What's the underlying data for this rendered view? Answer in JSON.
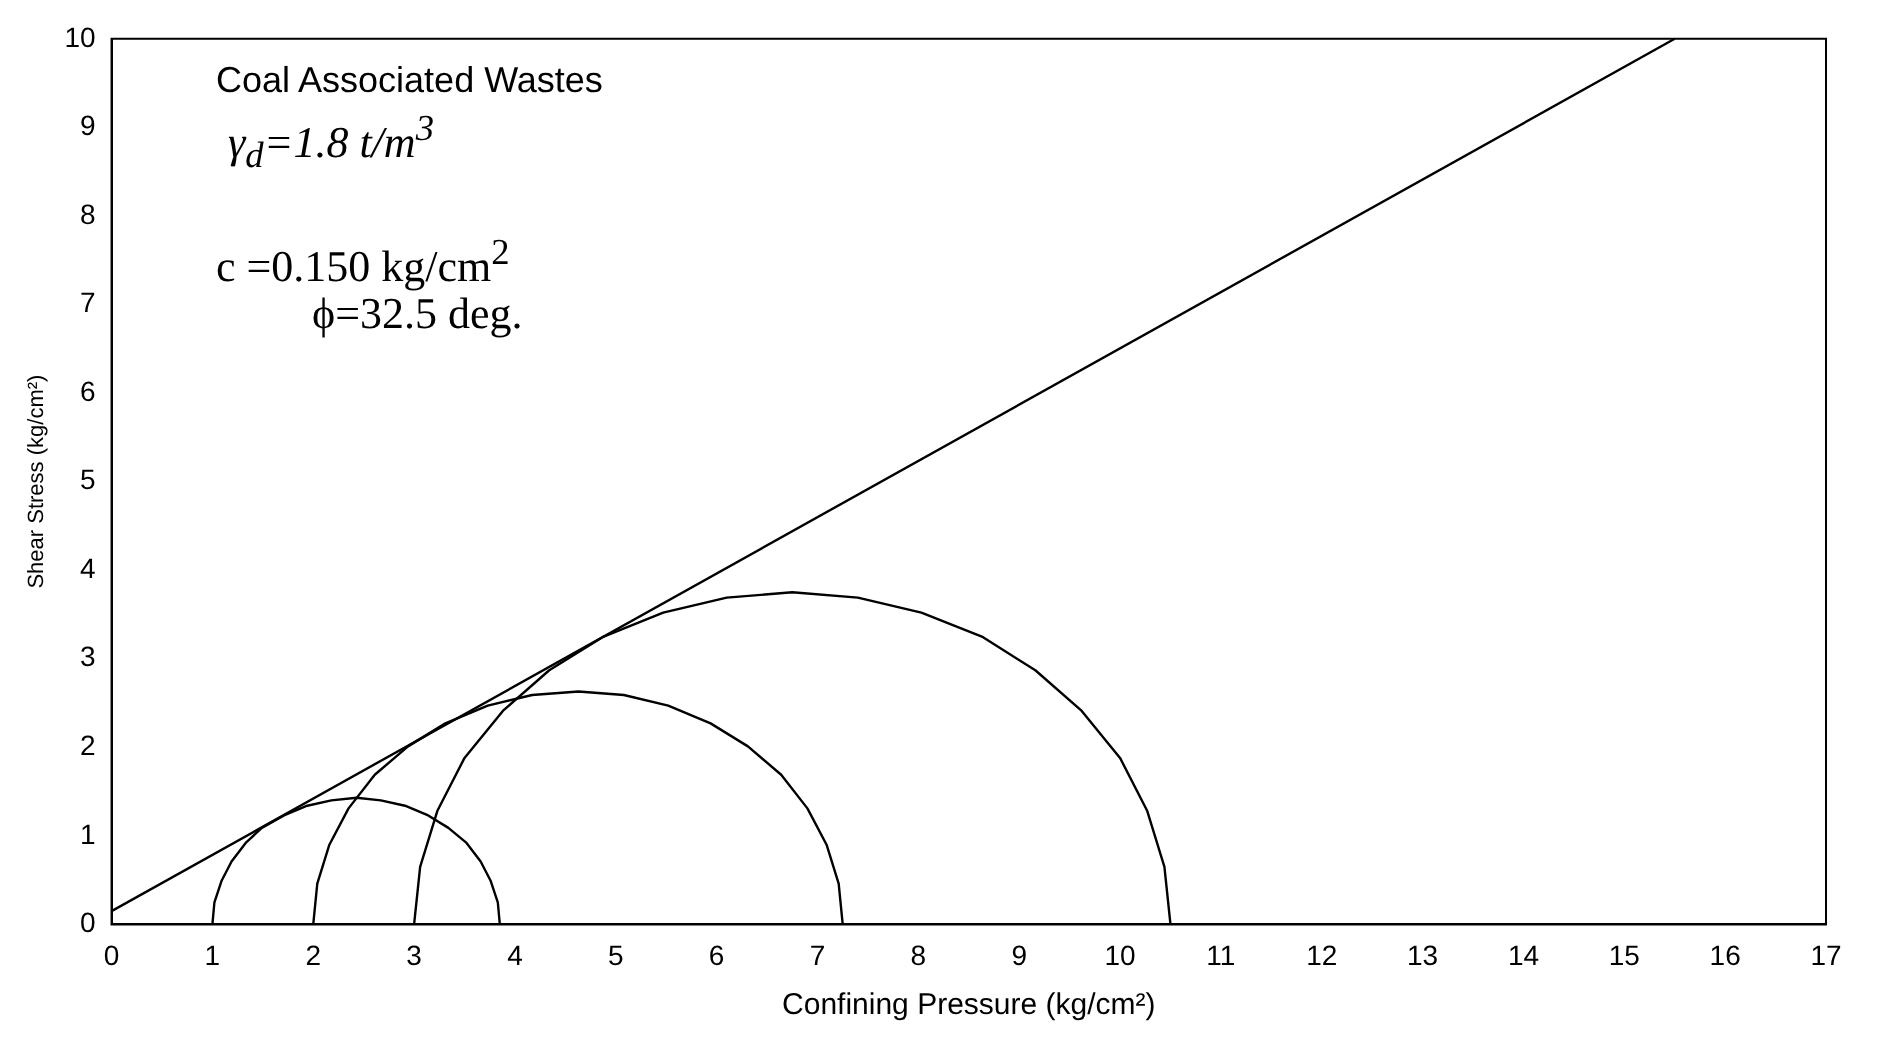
{
  "chart_data": {
    "type": "line",
    "xlabel": "Confining Pressure (kg/cm²)",
    "ylabel": "Shear Stress (kg/cm²)",
    "annotations": [
      "Coal Associated Wastes",
      "γ$_{d}$=1.8 t/m$^{3}$",
      "c =0.150 kg/cm$^{2}$",
      "ϕ=32.5 deg."
    ],
    "xlim": [
      0,
      17
    ],
    "xticks": [
      0,
      1,
      2,
      3,
      4,
      5,
      6,
      7,
      8,
      9,
      10,
      11,
      12,
      13,
      14,
      15,
      16,
      17
    ],
    "ylim": [
      0,
      10
    ],
    "yticks": [
      0,
      1,
      2,
      3,
      4,
      5,
      6,
      7,
      8,
      9,
      10
    ],
    "grid": false,
    "legend": false,
    "marker": "none",
    "line_style": "solid",
    "series": [
      {
        "color": "#000000",
        "x": [
          0,
          15.5
        ],
        "values": [
          0.15,
          10
        ]
      },
      {
        "color": "#000000",
        "x": [
          3.85,
          3.83,
          3.76,
          3.66,
          3.52,
          3.34,
          3.14,
          2.91,
          2.67,
          2.43,
          2.18,
          1.94,
          1.71,
          1.49,
          1.33,
          1.19,
          1.09,
          1.02,
          1.0
        ],
        "values": [
          0,
          0.25,
          0.49,
          0.71,
          0.92,
          1.09,
          1.23,
          1.34,
          1.4,
          1.43,
          1.4,
          1.34,
          1.23,
          1.09,
          0.92,
          0.71,
          0.49,
          0.25,
          0
        ]
      },
      {
        "color": "#000000",
        "x": [
          7.25,
          7.21,
          7.09,
          6.9,
          6.64,
          6.31,
          5.94,
          5.52,
          5.08,
          4.63,
          4.17,
          3.73,
          3.31,
          2.94,
          2.61,
          2.35,
          2.16,
          2.04,
          2.0
        ],
        "values": [
          0,
          0.46,
          0.9,
          1.31,
          1.69,
          2.01,
          2.27,
          2.47,
          2.59,
          2.63,
          2.59,
          2.47,
          2.27,
          2.01,
          1.69,
          1.31,
          0.9,
          0.46,
          0
        ]
      },
      {
        "color": "#000000",
        "x": [
          10.5,
          10.44,
          10.27,
          10.0,
          9.62,
          9.16,
          8.63,
          8.03,
          7.4,
          6.75,
          6.1,
          5.47,
          4.88,
          4.34,
          3.88,
          3.5,
          3.23,
          3.06,
          3.0
        ],
        "values": [
          0,
          0.65,
          1.28,
          1.88,
          2.41,
          2.87,
          3.25,
          3.52,
          3.69,
          3.75,
          3.69,
          3.52,
          3.25,
          2.87,
          2.41,
          1.88,
          1.28,
          0.65,
          0
        ]
      }
    ]
  }
}
